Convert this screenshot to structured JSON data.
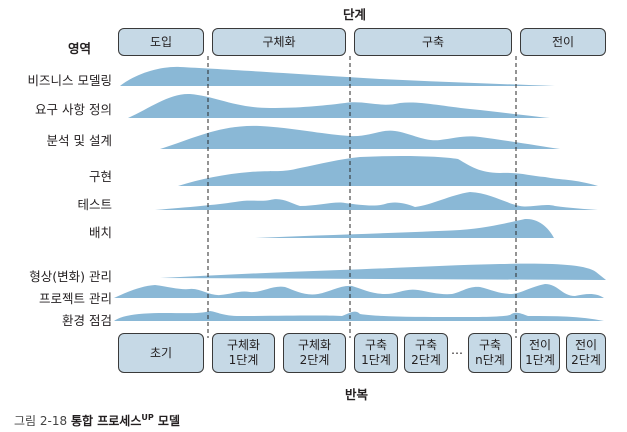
{
  "phases_title": "단계",
  "area_title": "영역",
  "phases": [
    "도입",
    "구체화",
    "구축",
    "전이"
  ],
  "areas": [
    "비즈니스 모델링",
    "요구 사항 정의",
    "분석 및 설계",
    "구현",
    "테스트",
    "배치",
    "형상(변화) 관리",
    "프로젝트 관리",
    "환경 점검"
  ],
  "iterations": [
    "초기",
    "구체화\n1단계",
    "구체화\n2단계",
    "구축\n1단계",
    "구축\n2단계",
    "…",
    "구축\nn단계",
    "전이\n1단계",
    "전이\n2단계"
  ],
  "iterations_title": "반복",
  "caption": {
    "label": "그림 2-18",
    "title": "통합 프로세스",
    "sup": "UP",
    "suffix": " 모델"
  },
  "colors": {
    "hump": "#8ab8d6",
    "box": "#c6d9e6",
    "border": "#3a3a3a"
  }
}
